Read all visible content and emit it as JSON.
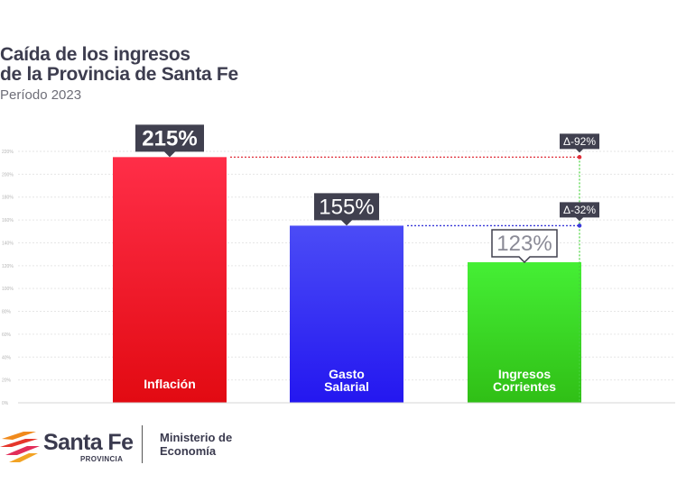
{
  "title_lines": [
    "Caída de los ingresos",
    "de la Provincia de Santa Fe"
  ],
  "subtitle": "Período 2023",
  "chart_data": {
    "type": "bar",
    "categories": [
      "Inflación",
      "Gasto Salarial",
      "Ingresos Corrientes"
    ],
    "category_lines": [
      [
        "Inflación"
      ],
      [
        "Gasto",
        "Salarial"
      ],
      [
        "Ingresos",
        "Corrientes"
      ]
    ],
    "values": [
      215,
      155,
      123
    ],
    "value_labels": [
      "215%",
      "155%",
      "123%"
    ],
    "colors": [
      [
        "#ff2e48",
        "#e20a12"
      ],
      [
        "#4b4cf6",
        "#2417f0"
      ],
      [
        "#45ef35",
        "#30bf16"
      ]
    ],
    "ylim": [
      0,
      220
    ],
    "yticks": [
      0,
      20,
      40,
      60,
      80,
      100,
      120,
      140,
      160,
      180,
      200,
      220
    ],
    "ytick_labels": [
      "0%",
      "20%",
      "40%",
      "60%",
      "80%",
      "100%",
      "120%",
      "140%",
      "160%",
      "180%",
      "200%",
      "220%"
    ],
    "grid": true,
    "annotations": [
      {
        "label": "Δ-92%",
        "from_value": 215,
        "to_value": 123,
        "color": "#e0303a"
      },
      {
        "label": "Δ-32%",
        "from_value": 155,
        "to_value": 123,
        "color": "#3a3ad8"
      }
    ]
  },
  "logo": {
    "brand": "Santa Fe",
    "brand_sub": "PROVINCIA",
    "ministry_lines": [
      "Ministerio de",
      "Economía"
    ]
  }
}
